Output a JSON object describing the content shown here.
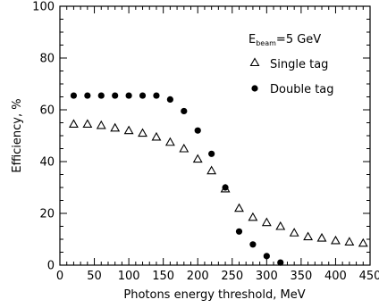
{
  "chart_data": {
    "type": "scatter",
    "xlabel": "Photons energy threshold, MeV",
    "ylabel": "Efficiency, %",
    "xlim": [
      0,
      450
    ],
    "ylim": [
      0,
      100
    ],
    "x_ticks": [
      0,
      50,
      100,
      150,
      200,
      250,
      300,
      350,
      400,
      450
    ],
    "y_ticks": [
      0,
      20,
      40,
      60,
      80,
      100
    ],
    "grid": false,
    "legend_position": "top-right",
    "annotation": {
      "main": "E",
      "subscript": "beam",
      "suffix": "=5 GeV"
    },
    "series": [
      {
        "name": "Single tag",
        "marker": "open-triangle",
        "points": [
          [
            20,
            54.5
          ],
          [
            40,
            54.5
          ],
          [
            60,
            54
          ],
          [
            80,
            53
          ],
          [
            100,
            52
          ],
          [
            120,
            51
          ],
          [
            140,
            49.5
          ],
          [
            160,
            47.5
          ],
          [
            180,
            45
          ],
          [
            200,
            41
          ],
          [
            220,
            36.5
          ],
          [
            240,
            29.5
          ],
          [
            260,
            22
          ],
          [
            280,
            18.5
          ],
          [
            300,
            16.5
          ],
          [
            320,
            15
          ],
          [
            340,
            12.5
          ],
          [
            360,
            11
          ],
          [
            380,
            10.5
          ],
          [
            400,
            9.5
          ],
          [
            420,
            9
          ],
          [
            440,
            8.5
          ]
        ]
      },
      {
        "name": "Double tag",
        "marker": "filled-circle",
        "points": [
          [
            20,
            65.5
          ],
          [
            40,
            65.5
          ],
          [
            60,
            65.5
          ],
          [
            80,
            65.5
          ],
          [
            100,
            65.5
          ],
          [
            120,
            65.5
          ],
          [
            140,
            65.5
          ],
          [
            160,
            64
          ],
          [
            180,
            59.5
          ],
          [
            200,
            52
          ],
          [
            220,
            43
          ],
          [
            240,
            30
          ],
          [
            260,
            13
          ],
          [
            280,
            8
          ],
          [
            300,
            3.5
          ],
          [
            320,
            1
          ]
        ]
      }
    ]
  }
}
